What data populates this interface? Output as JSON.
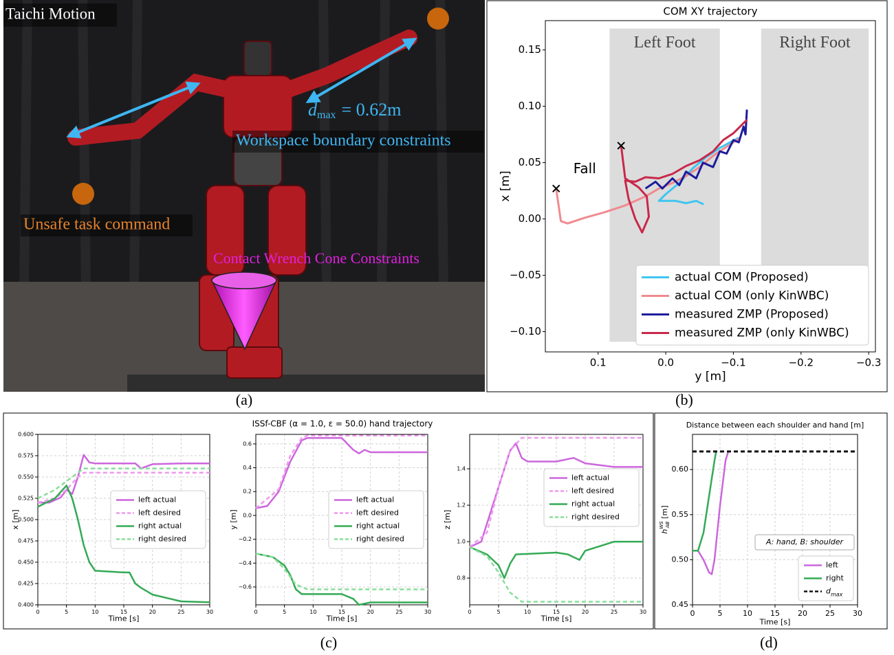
{
  "figure": {
    "captions": [
      "(a)",
      "(b)",
      "(c)",
      "(d)"
    ],
    "panel_c_title": "ISSf-CBF (α = 1.0, ε = 50.0) hand trajectory"
  },
  "photo": {
    "title": "Taichi Motion",
    "dmax_label": {
      "symbol": "d",
      "sub": "max",
      "rest": "= 0.62m"
    },
    "workspace": "Workspace boundary constraints",
    "unsafe": "Unsafe task command",
    "cone": "Contact Wrench Cone Constraints"
  },
  "chart_data": [
    {
      "type": "line",
      "title": "COM XY trajectory",
      "xlabel": "y [m]",
      "ylabel": "x [m]",
      "xlim": [
        0.178,
        -0.31
      ],
      "ylim": [
        -0.118,
        0.176
      ],
      "xticks": [
        0.1,
        {
          "value": 0,
          "label": "0.0"
        },
        {
          "value": -0.1,
          "label": "−0.1"
        },
        {
          "value": -0.2,
          "label": "−0.2"
        },
        {
          "value": -0.3,
          "label": "−0.3"
        }
      ],
      "yticks": [
        0.15,
        {
          "value": 0.1,
          "label": "0.10"
        },
        0.05,
        {
          "value": 0,
          "label": "0.00"
        },
        {
          "value": -0.05,
          "label": "−0.05"
        },
        {
          "value": -0.1,
          "label": "−0.10"
        }
      ],
      "grid": false,
      "legend": "lower right",
      "region_color": "#dcdcdc",
      "regions": [
        {
          "label": "Left Foot",
          "x": [
            0.083,
            -0.08
          ],
          "y": [
            -0.109,
            0.169
          ]
        },
        {
          "label": "Right Foot",
          "x": [
            -0.141,
            -0.3
          ],
          "y": [
            -0.109,
            0.169
          ]
        }
      ],
      "markers": [
        {
          "x": 0.162,
          "y": 0.027
        },
        {
          "x": 0.066,
          "y": 0.065
        }
      ],
      "annotations": [
        "Fall"
      ],
      "series": [
        {
          "name": "actual COM (Proposed)",
          "color": "#3fc5f0",
          "x": [
            -0.056,
            -0.045,
            -0.03,
            -0.015,
            0.01,
            0.0,
            -0.02,
            -0.04,
            -0.06,
            -0.08,
            -0.095,
            -0.108
          ],
          "values": [
            0.013,
            0.016,
            0.014,
            0.016,
            0.016,
            0.022,
            0.032,
            0.045,
            0.055,
            0.063,
            0.068,
            0.072
          ]
        },
        {
          "name": "actual COM (only KinWBC)",
          "color": "#f08a8f",
          "x": [
            -0.11,
            -0.09,
            -0.07,
            -0.05,
            -0.03,
            -0.01,
            0.01,
            0.03,
            0.06,
            0.09,
            0.12,
            0.145,
            0.155,
            0.162
          ],
          "values": [
            0.072,
            0.064,
            0.056,
            0.046,
            0.038,
            0.032,
            0.027,
            0.02,
            0.012,
            0.006,
            0.001,
            -0.004,
            -0.002,
            0.027
          ]
        },
        {
          "name": "measured ZMP (Proposed)",
          "color": "#1c1c9c",
          "x": [
            0.03,
            0.015,
            0.005,
            -0.01,
            -0.02,
            -0.03,
            -0.045,
            -0.055,
            -0.07,
            -0.08,
            -0.09,
            -0.1,
            -0.108,
            -0.115,
            -0.118,
            -0.12
          ],
          "values": [
            0.027,
            0.033,
            0.027,
            0.036,
            0.03,
            0.042,
            0.036,
            0.05,
            0.046,
            0.06,
            0.058,
            0.07,
            0.068,
            0.082,
            0.075,
            0.097
          ]
        },
        {
          "name": "measured ZMP (only KinWBC)",
          "color": "#c8284a",
          "x": [
            -0.12,
            -0.1,
            -0.085,
            -0.07,
            -0.05,
            -0.03,
            -0.01,
            0.01,
            0.03,
            0.045,
            0.06,
            0.055,
            0.045,
            0.035,
            0.025,
            0.028,
            0.04,
            0.06,
            0.066
          ],
          "values": [
            0.088,
            0.076,
            0.07,
            0.06,
            0.052,
            0.047,
            0.04,
            0.036,
            0.037,
            0.033,
            0.034,
            0.018,
            0.0,
            -0.012,
            0.002,
            0.02,
            0.028,
            0.036,
            0.065
          ]
        }
      ]
    },
    {
      "type": "line",
      "ylabel": "x [m]",
      "xlabel": "Time [s]",
      "xlim": [
        0,
        30
      ],
      "ylim": [
        0.4,
        0.6
      ],
      "xticks": [
        0,
        5,
        10,
        15,
        20,
        25,
        30
      ],
      "yticks": [
        {
          "value": 0.4,
          "label": "0.400"
        },
        0.425,
        {
          "value": 0.45,
          "label": "0.450"
        },
        0.475,
        {
          "value": 0.5,
          "label": "0.500"
        },
        0.525,
        {
          "value": 0.55,
          "label": "0.550"
        },
        0.575,
        {
          "value": 0.6,
          "label": "0.600"
        }
      ],
      "grid": true,
      "legend": "center right",
      "series": [
        {
          "name": "left actual",
          "color": "#cc66dd",
          "dash": false,
          "x": [
            0,
            2,
            4,
            5,
            6,
            7,
            8,
            9,
            10,
            15,
            17,
            18,
            20,
            25,
            30
          ],
          "values": [
            0.52,
            0.52,
            0.526,
            0.535,
            0.53,
            0.55,
            0.576,
            0.567,
            0.566,
            0.566,
            0.566,
            0.56,
            0.565,
            0.566,
            0.566
          ]
        },
        {
          "name": "left desired",
          "color": "#ee99ee",
          "dash": true,
          "x": [
            0,
            3,
            5,
            7,
            8,
            30
          ],
          "values": [
            0.52,
            0.525,
            0.535,
            0.55,
            0.555,
            0.555
          ]
        },
        {
          "name": "right actual",
          "color": "#33aa55",
          "dash": false,
          "x": [
            0,
            3,
            5,
            6,
            7,
            8,
            9,
            10,
            15,
            16,
            17,
            18,
            20,
            25,
            30
          ],
          "values": [
            0.515,
            0.525,
            0.54,
            0.525,
            0.5,
            0.47,
            0.45,
            0.44,
            0.438,
            0.438,
            0.425,
            0.42,
            0.412,
            0.404,
            0.403
          ]
        },
        {
          "name": "right desired",
          "color": "#88dd99",
          "dash": true,
          "x": [
            0,
            3,
            5,
            7,
            8,
            30
          ],
          "values": [
            0.525,
            0.535,
            0.545,
            0.555,
            0.56,
            0.56
          ]
        }
      ]
    },
    {
      "type": "line",
      "ylabel": "y [m]",
      "xlabel": "Time [s]",
      "xlim": [
        0,
        30
      ],
      "ylim": [
        -0.75,
        0.68
      ],
      "xticks": [
        0,
        5,
        10,
        15,
        20,
        25,
        30
      ],
      "yticks": [
        {
          "value": -0.6,
          "label": "−0.6"
        },
        {
          "value": -0.4,
          "label": "−0.4"
        },
        {
          "value": -0.2,
          "label": "−0.2"
        },
        {
          "value": 0,
          "label": "0.0"
        },
        0.2,
        0.4,
        0.6
      ],
      "grid": true,
      "legend": "center right",
      "series": [
        {
          "name": "left actual",
          "color": "#cc66dd",
          "dash": false,
          "x": [
            0,
            2,
            4,
            6,
            8,
            9,
            15,
            16,
            17,
            18,
            19,
            20,
            30
          ],
          "values": [
            0.06,
            0.08,
            0.2,
            0.45,
            0.63,
            0.65,
            0.65,
            0.6,
            0.55,
            0.52,
            0.55,
            0.53,
            0.53
          ]
        },
        {
          "name": "left desired",
          "color": "#ee99ee",
          "dash": true,
          "x": [
            0,
            4,
            6,
            8,
            9,
            30
          ],
          "values": [
            0.06,
            0.22,
            0.5,
            0.65,
            0.67,
            0.67
          ]
        },
        {
          "name": "right actual",
          "color": "#33aa55",
          "dash": false,
          "x": [
            0,
            3,
            5,
            6,
            7,
            8,
            15,
            17,
            18,
            20,
            30
          ],
          "values": [
            -0.32,
            -0.35,
            -0.42,
            -0.5,
            -0.62,
            -0.66,
            -0.66,
            -0.7,
            -0.75,
            -0.73,
            -0.73
          ]
        },
        {
          "name": "right desired",
          "color": "#88dd99",
          "dash": true,
          "x": [
            0,
            3,
            5,
            7,
            9,
            30
          ],
          "values": [
            -0.32,
            -0.35,
            -0.45,
            -0.58,
            -0.62,
            -0.62
          ]
        }
      ]
    },
    {
      "type": "line",
      "ylabel": "z [m]",
      "xlabel": "Time [s]",
      "xlim": [
        0,
        30
      ],
      "ylim": [
        0.653,
        1.589
      ],
      "xticks": [
        0,
        5,
        10,
        15,
        20,
        25,
        30
      ],
      "yticks": [
        0.8,
        {
          "value": 1,
          "label": "1.0"
        },
        1.2,
        1.4
      ],
      "grid": true,
      "legend": "upper right",
      "series": [
        {
          "name": "left actual",
          "color": "#cc66dd",
          "dash": false,
          "x": [
            0,
            2,
            4,
            6,
            7,
            8,
            9,
            10,
            15,
            18,
            20,
            25,
            30
          ],
          "values": [
            0.97,
            1.0,
            1.2,
            1.4,
            1.5,
            1.54,
            1.46,
            1.44,
            1.44,
            1.46,
            1.43,
            1.41,
            1.41
          ]
        },
        {
          "name": "left desired",
          "color": "#ee99ee",
          "dash": true,
          "x": [
            0,
            3,
            5,
            7,
            9,
            30
          ],
          "values": [
            0.97,
            1.05,
            1.3,
            1.5,
            1.57,
            1.57
          ]
        },
        {
          "name": "right actual",
          "color": "#33aa55",
          "dash": false,
          "x": [
            0,
            3,
            5,
            6,
            7,
            8,
            15,
            17,
            19,
            20,
            25,
            30
          ],
          "values": [
            0.97,
            0.93,
            0.87,
            0.8,
            0.88,
            0.93,
            0.94,
            0.93,
            0.9,
            0.95,
            1.0,
            1.0
          ]
        },
        {
          "name": "right desired",
          "color": "#88dd99",
          "dash": true,
          "x": [
            0,
            3,
            5,
            7,
            9,
            30
          ],
          "values": [
            0.97,
            0.92,
            0.83,
            0.72,
            0.67,
            0.67
          ]
        }
      ]
    },
    {
      "type": "line",
      "title": "Distance between each shoulder and hand [m]",
      "ylabel": "h",
      "ylabel_sup": "WS",
      "ylabel_sub": "AB",
      "ylabel_unit": "[m]",
      "xlabel": "Time [s]",
      "xlim": [
        0,
        30
      ],
      "ylim": [
        0.45,
        0.639
      ],
      "xticks": [
        0,
        5,
        10,
        15,
        20,
        25,
        30
      ],
      "yticks": [
        0.45,
        {
          "value": 0.5,
          "label": "0.50"
        },
        0.55,
        {
          "value": 0.6,
          "label": "0.60"
        }
      ],
      "grid": true,
      "legend": "lower right",
      "annotations": [
        "A: hand, B: shoulder"
      ],
      "series": [
        {
          "name": "left",
          "color": "#cc66dd",
          "dash": false,
          "x": [
            0,
            1,
            2,
            3,
            3.5,
            4,
            5,
            6,
            6.5
          ],
          "values": [
            0.51,
            0.51,
            0.5,
            0.486,
            0.484,
            0.5,
            0.56,
            0.61,
            0.62
          ]
        },
        {
          "name": "right",
          "color": "#33aa55",
          "dash": false,
          "x": [
            0,
            1,
            2,
            3,
            4,
            4.3
          ],
          "values": [
            0.51,
            0.51,
            0.53,
            0.57,
            0.61,
            0.62
          ]
        },
        {
          "name": "d",
          "name_sub": "max",
          "color": "#111111",
          "dash": true,
          "x": [
            0,
            30
          ],
          "values": [
            0.62,
            0.62
          ]
        }
      ]
    }
  ]
}
